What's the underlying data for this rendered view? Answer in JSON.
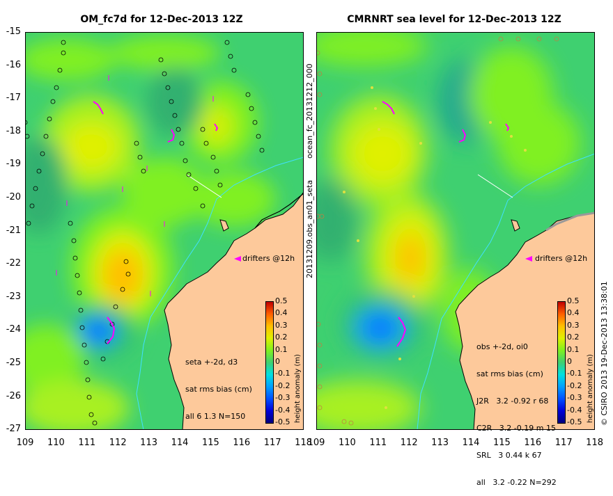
{
  "left_panel": {
    "title": "OM_fc7d for 12-Dec-2013 12Z",
    "drifter_label": "drifters @12h",
    "stats_lines": [
      "seta +-2d, d3",
      "sat rms bias (cm)",
      "all 6 1.3 N=150"
    ]
  },
  "right_panel": {
    "title": "CMRNRT sea level  for 12-Dec-2013 12Z",
    "drifter_label": "drifters @12h",
    "stats_lines": [
      "obs +-2d, oi0",
      "sat rms bias (cm)",
      "J2R   3.2 -0.92 r 68",
      "C2R   3.2 -0.19 m 15",
      "SRL   3 0.44 k 67",
      "all   3.2 -0.22 N=292"
    ]
  },
  "side_label_top": "ocean_fc_20131212_000",
  "side_label_bottom": "20131209.obs_an01_seta",
  "credit": "© CSIRO 2013   19-Dec-2013 13:38:01",
  "colorbar": {
    "ticks": [
      "0.5",
      "0.4",
      "0.3",
      "0.2",
      "0.1",
      "0",
      "-0.1",
      "-0.2",
      "-0.3",
      "-0.4",
      "-0.5"
    ],
    "label": "height anomaly (m)",
    "colors": [
      "#00007f",
      "#0000d8",
      "#0050ff",
      "#00a0ff",
      "#00e0e0",
      "#3fd070",
      "#80f020",
      "#e0f000",
      "#ffc000",
      "#ff6000",
      "#c00000"
    ]
  },
  "axes": {
    "y_ticks": [
      "-15",
      "-16",
      "-17",
      "-18",
      "-19",
      "-20",
      "-21",
      "-22",
      "-23",
      "-24",
      "-25",
      "-26",
      "-27"
    ],
    "left_x_ticks": [
      "109",
      "110",
      "111",
      "112",
      "113",
      "114",
      "115",
      "116",
      "117",
      "118"
    ],
    "right_x_ticks": [
      "109",
      "110",
      "111",
      "112",
      "113",
      "114",
      "115",
      "116",
      "117",
      "118"
    ]
  },
  "colors": {
    "land": "#fdc99b",
    "ocean_base": "#3fd070",
    "drifter": "#ff00ff",
    "coast": "#000000",
    "shelf_line": "#40e0ff"
  }
}
